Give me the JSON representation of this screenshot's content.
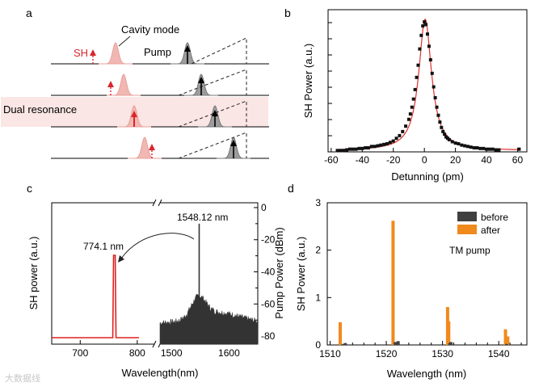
{
  "panels": {
    "a": {
      "label": "a",
      "labels": {
        "sh": "SH",
        "cavity": "Cavity mode",
        "pump": "Pump",
        "dual": "Dual resonance"
      },
      "colors": {
        "sh": "#d9262c",
        "sh_fill": "#f1b7b2",
        "pump_fill": "#9c9c9c",
        "dual_bg": "#fae6e4"
      }
    },
    "b": {
      "label": "b",
      "chart_data": {
        "type": "scatter",
        "xlabel": "Detunning (pm)",
        "ylabel": "SH Power (a.u.)",
        "xlim": [
          -62,
          66
        ],
        "ylim": [
          0,
          1.05
        ],
        "xticks": [
          -60,
          -40,
          -20,
          0,
          20,
          40,
          60
        ],
        "series": [
          {
            "kind": "points",
            "color": "#111111",
            "x": [
              -56,
              -54,
              -52,
              -50,
              -48,
              -46,
              -44,
              -42,
              -40,
              -38,
              -36,
              -34,
              -32,
              -30,
              -28,
              -26,
              -24,
              -22,
              -20,
              -18,
              -16,
              -14,
              -12,
              -10,
              -9,
              -8,
              -7,
              -6,
              -5,
              -4,
              -3,
              -2,
              -1,
              0,
              1,
              2,
              3,
              4,
              5,
              6,
              7,
              8,
              9,
              10,
              11,
              12,
              13,
              14,
              15,
              16,
              18,
              20,
              22,
              24,
              26,
              28,
              30,
              32,
              34,
              36,
              38,
              40,
              42,
              44,
              46,
              48,
              61
            ],
            "y": [
              0.01,
              0.01,
              0.01,
              0.015,
              0.02,
              0.02,
              0.02,
              0.025,
              0.025,
              0.03,
              0.03,
              0.04,
              0.04,
              0.045,
              0.05,
              0.055,
              0.06,
              0.07,
              0.08,
              0.1,
              0.12,
              0.15,
              0.19,
              0.24,
              0.28,
              0.33,
              0.39,
              0.46,
              0.55,
              0.64,
              0.76,
              0.86,
              0.93,
              0.96,
              0.94,
              0.87,
              0.78,
              0.68,
              0.58,
              0.48,
              0.4,
              0.33,
              0.27,
              0.22,
              0.18,
              0.15,
              0.13,
              0.11,
              0.1,
              0.09,
              0.075,
              0.065,
              0.06,
              0.05,
              0.045,
              0.04,
              0.035,
              0.03,
              0.03,
              0.025,
              0.025,
              0.02,
              0.02,
              0.02,
              0.015,
              0.015,
              0.02
            ]
          },
          {
            "kind": "fit",
            "color": "#e03030",
            "center": 0.5,
            "halfwidth": 5,
            "peak": 0.98,
            "floor": 0.01
          }
        ]
      }
    },
    "c": {
      "label": "c",
      "chart_data": {
        "type": "line",
        "xlabel": "Wavelength(nm)",
        "ylabel_left": "SH power (a.u.)",
        "ylabel_right": "Pump Power (dBm)",
        "left_xlim": [
          650,
          830
        ],
        "left_xticks": [
          700,
          800
        ],
        "right_xlim": [
          1480,
          1650
        ],
        "right_xticks": [
          1500,
          1600
        ],
        "right_ylim": [
          -85,
          3
        ],
        "right_yticks": [
          0,
          -20,
          -40,
          -60,
          -80
        ],
        "series": [
          {
            "name": "SH",
            "color": "#e02020",
            "peak_x": 774.1,
            "peak_label": "774.1 nm"
          },
          {
            "name": "Pump",
            "color": "#333333",
            "peak_x": 1548.12,
            "peak_label": "1548.12 nm",
            "peak_y": -10,
            "floor_y": -78
          }
        ]
      }
    },
    "d": {
      "label": "d",
      "chart_data": {
        "type": "bar",
        "xlabel": "Wavelength (nm)",
        "ylabel": "SH Power (a.u.)",
        "xlim": [
          1509.5,
          1545
        ],
        "ylim": [
          0,
          3
        ],
        "xticks": [
          1510,
          1520,
          1530,
          1540
        ],
        "yticks": [
          0,
          1,
          2,
          3
        ],
        "annotation": "TM pump",
        "series": [
          {
            "name": "before",
            "color": "#404040",
            "x": [
              1512.3,
              1512.7,
              1521.6,
              1522.1,
              1531.3,
              1531.5,
              1541.4
            ],
            "values": [
              0.02,
              0.04,
              0.06,
              0.08,
              0.04,
              0.06,
              0.02
            ]
          },
          {
            "name": "after",
            "color": "#f08a1c",
            "x": [
              1511.8,
              1521.2,
              1530.9,
              1531.1,
              1541.2,
              1541.6
            ],
            "values": [
              0.48,
              2.62,
              0.8,
              0.5,
              0.33,
              0.18
            ]
          }
        ]
      }
    }
  },
  "watermark": "大数据线"
}
